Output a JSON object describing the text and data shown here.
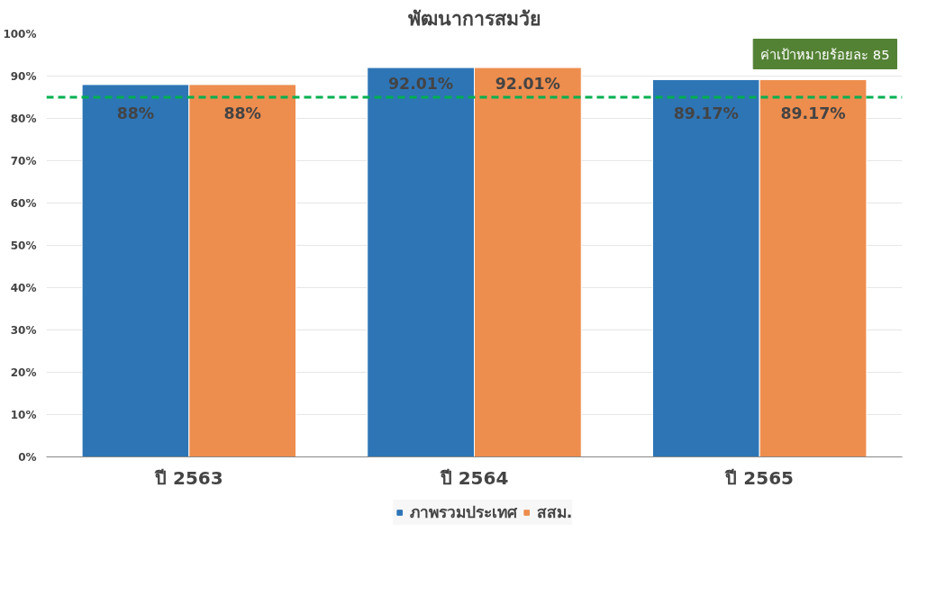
{
  "chart_data": {
    "type": "bar",
    "title": "พัฒนาการสมวัย",
    "categories": [
      "ปี 2563",
      "ปี 2564",
      "ปี 2565"
    ],
    "series": [
      {
        "name": "ภาพรวมประเทศ",
        "color": "#2e75b6",
        "values": [
          88,
          92.01,
          89.17
        ],
        "value_labels": [
          "88%",
          "92.01%",
          "89.17%"
        ]
      },
      {
        "name": "สสม.",
        "color": "#ed8d4e",
        "values": [
          88,
          92.01,
          89.17
        ],
        "value_labels": [
          "88%",
          "92.01%",
          "89.17%"
        ]
      }
    ],
    "ylim": [
      0,
      100
    ],
    "yticks": [
      {
        "value": 0,
        "label": "0%"
      },
      {
        "value": 10,
        "label": "10%"
      },
      {
        "value": 20,
        "label": "20%"
      },
      {
        "value": 30,
        "label": "30%"
      },
      {
        "value": 40,
        "label": "40%"
      },
      {
        "value": 50,
        "label": "50%"
      },
      {
        "value": 60,
        "label": "60%"
      },
      {
        "value": 70,
        "label": "70%"
      },
      {
        "value": 80,
        "label": "80%"
      },
      {
        "value": 90,
        "label": "90%"
      },
      {
        "value": 100,
        "label": "100%"
      }
    ],
    "ref_lines": [
      {
        "axis": "y",
        "value": 85,
        "label": "ค่าเป้าหมายร้อยละ 85",
        "color": "#00b050",
        "line_style": "dashed"
      }
    ],
    "grid": "y",
    "legend": "bottom"
  }
}
